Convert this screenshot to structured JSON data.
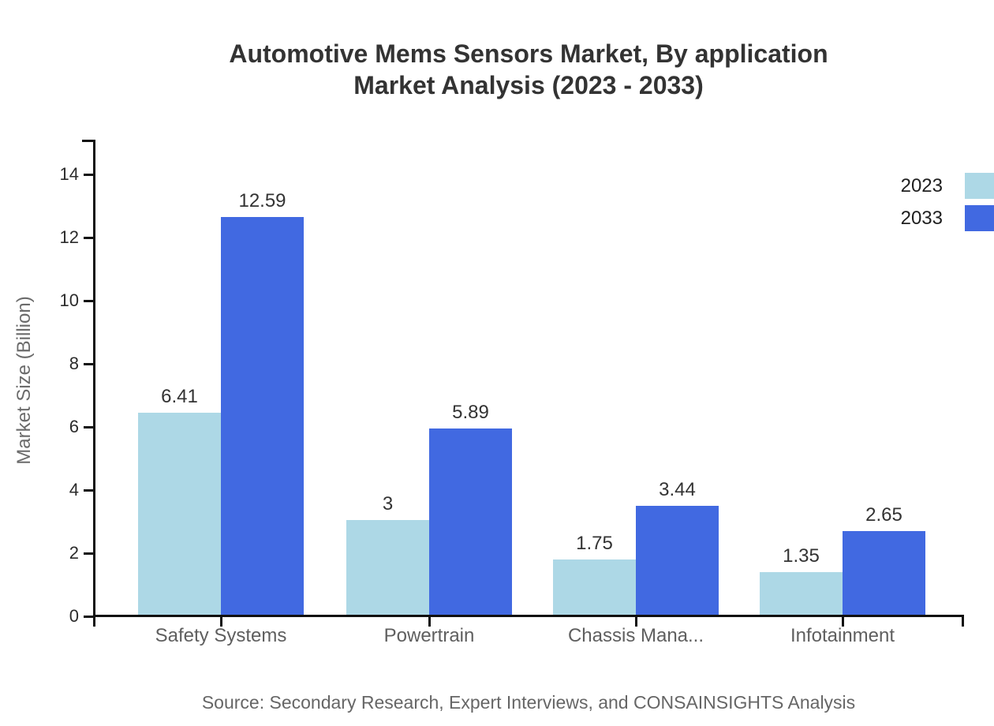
{
  "title": {
    "line1": "Automotive Mems Sensors Market, By application",
    "line2": "Market Analysis (2023 - 2033)"
  },
  "legend": [
    {
      "label": "2023",
      "color": "#ADD8E6"
    },
    {
      "label": "2033",
      "color": "#4169E1"
    }
  ],
  "y_axis": {
    "label": "Market Size (Billion)",
    "ticks": [
      0,
      2,
      4,
      6,
      8,
      10,
      12,
      14
    ]
  },
  "source": "Source: Secondary Research, Expert Interviews, and CONSAINSIGHTS Analysis",
  "chart_data": {
    "type": "bar",
    "title": "Automotive Mems Sensors Market, By application Market Analysis (2023 - 2033)",
    "categories": [
      "Safety Systems",
      "Powertrain",
      "Chassis Mana...",
      "Infotainment"
    ],
    "series": [
      {
        "name": "2023",
        "color": "#ADD8E6",
        "values": [
          6.41,
          3,
          1.75,
          1.35
        ]
      },
      {
        "name": "2033",
        "color": "#4169E1",
        "values": [
          12.59,
          5.89,
          3.44,
          2.65
        ]
      }
    ],
    "xlabel": "",
    "ylabel": "Market Size (Billion)",
    "ylim": [
      0,
      15
    ],
    "grid": false,
    "legend_position": "top-right",
    "value_labels_shown": true
  }
}
